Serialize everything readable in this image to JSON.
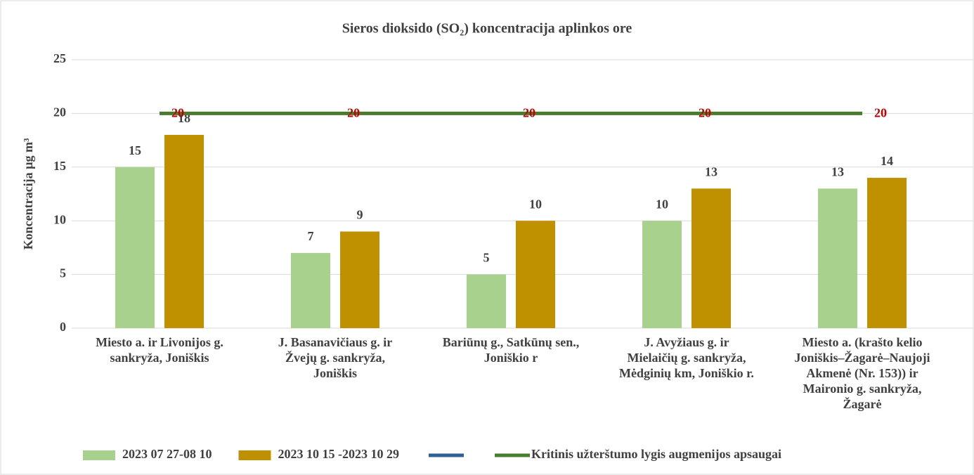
{
  "chart_data": {
    "type": "bar",
    "title": "Sieros dioksido (SO₂) koncentracija  aplinkos ore",
    "y_label": "Koncentracija µg m³",
    "categories": [
      "Miesto a. ir Livonijos g.\nsankryža, Joniškis",
      "J. Basanavičiaus g. ir\nŽvejų g. sankryža,\nJoniškis",
      "Bariūnų g., Satkūnų sen.,\nJoniškio r",
      "J. Avyžiaus g.  ir\nMielaičių g. sankryža,\nMėdginių km, Joniškio r.",
      "Miesto a. (krašto kelio\nJoniškis–Žagarė–Naujoji\nAkmenė (Nr. 153)) ir\nMaironio g. sankryža,\nŽagarė"
    ],
    "series": [
      {
        "name": "2023 07 27-08 10",
        "type": "bar",
        "color": "#a9d18e",
        "values": [
          15,
          7,
          5,
          10,
          13
        ]
      },
      {
        "name": "2023 10 15 -2023 10 29",
        "type": "bar",
        "color": "#bf9000",
        "values": [
          18,
          9,
          10,
          13,
          14
        ]
      },
      {
        "type": "line",
        "color": "#2e6096"
      },
      {
        "name": "Kritinis užterštumo lygis augmenijos apsaugai",
        "type": "line",
        "color": "#4a7a2e",
        "label_color": "#c00000",
        "values": [
          20,
          20,
          20,
          20,
          20
        ]
      }
    ],
    "ylim": [
      0,
      25
    ],
    "yticks": [
      0,
      5,
      10,
      15,
      20,
      25
    ],
    "grid": true,
    "legend": "bottom"
  }
}
